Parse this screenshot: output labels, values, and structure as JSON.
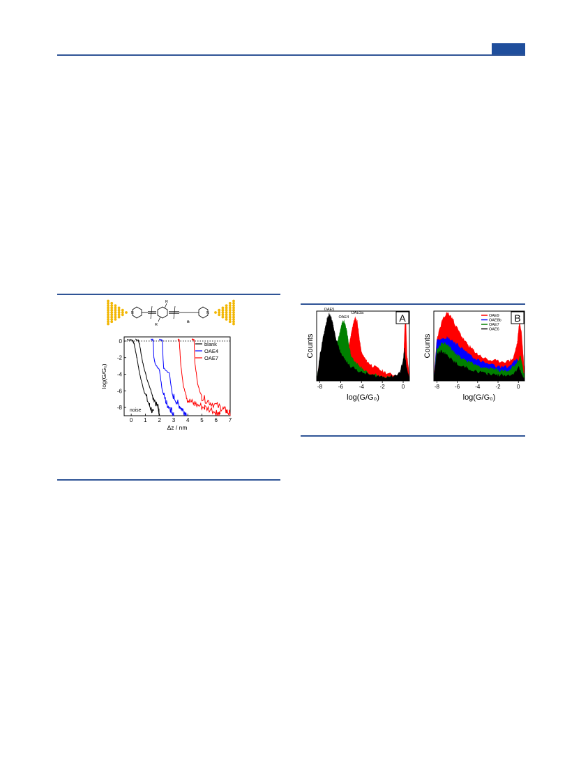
{
  "colors": {
    "rule": "#2f5496",
    "header_tab": "#1f4e9c",
    "gold": "#f2b705",
    "black": "#000000",
    "blue": "#0000ff",
    "red": "#ff0000",
    "green": "#008000"
  },
  "scheme": {
    "n_label": "n",
    "r_label_top": "R",
    "r_label_bottom": "R",
    "n_atom_left": "N",
    "n_atom_right": "N"
  },
  "chart_data": [
    {
      "type": "line",
      "ylabel": "log(G/G₀)",
      "xlabel": "Δz / nm",
      "xlim": [
        -0.5,
        7
      ],
      "ylim": [
        -9,
        0.5
      ],
      "xticks": [
        "0",
        "1",
        "2",
        "3",
        "4",
        "5",
        "6",
        "7"
      ],
      "yticks": [
        "0",
        "-2",
        "-4",
        "-6",
        "-8"
      ],
      "legend": [
        "blank",
        "OAE4",
        "OAE7"
      ],
      "legend_placement": "top-right",
      "annotation": "noise",
      "reference_line": {
        "y": 0,
        "style": "dotted"
      },
      "series": [
        {
          "name": "blank",
          "color": "#000000",
          "traces": [
            {
              "x": [
                -0.3,
                0.1,
                0.2,
                0.4,
                0.6,
                0.9,
                1.3,
                1.6
              ],
              "y": [
                0.2,
                0.1,
                -0.3,
                -2.0,
                -4.0,
                -6.0,
                -7.8,
                -8.8
              ]
            },
            {
              "x": [
                0.3,
                0.5,
                0.6,
                0.8,
                1.1,
                1.5,
                1.9,
                2.0
              ],
              "y": [
                0.2,
                0.1,
                -0.5,
                -2.5,
                -4.5,
                -6.5,
                -8.0,
                -8.8
              ]
            }
          ]
        },
        {
          "name": "OAE4",
          "color": "#0000ff",
          "traces": [
            {
              "x": [
                1.4,
                1.55,
                1.6,
                1.7,
                2.0,
                2.2,
                2.5,
                2.8,
                3.0
              ],
              "y": [
                0.2,
                0.1,
                -2.0,
                -2.8,
                -3.5,
                -6.0,
                -7.5,
                -8.2,
                -8.8
              ]
            },
            {
              "x": [
                2.0,
                2.2,
                2.25,
                2.3,
                2.7,
                2.9,
                3.3,
                3.6,
                3.9
              ],
              "y": [
                0.2,
                0.1,
                -2.0,
                -3.3,
                -3.9,
                -6.4,
                -7.5,
                -8.2,
                -8.8
              ]
            }
          ]
        },
        {
          "name": "OAE7",
          "color": "#ff0000",
          "traces": [
            {
              "x": [
                3.3,
                3.4,
                3.5,
                3.7,
                4.0,
                4.5,
                5.2,
                6.0,
                6.3
              ],
              "y": [
                0.2,
                0.1,
                -2.8,
                -5.5,
                -7.1,
                -7.6,
                -8.0,
                -8.5,
                -8.8
              ]
            },
            {
              "x": [
                4.3,
                4.45,
                4.5,
                4.7,
                5.0,
                5.6,
                6.3,
                6.7,
                7.0
              ],
              "y": [
                0.2,
                0.1,
                -2.5,
                -5.2,
                -6.8,
                -7.4,
                -8.0,
                -8.4,
                -8.8
              ]
            }
          ]
        }
      ]
    },
    {
      "type": "area",
      "panel": "A",
      "xlabel": "log(G/G₀)",
      "ylabel": "Counts",
      "xlim": [
        -8.3,
        0.6
      ],
      "xticks": [
        "-8",
        "-6",
        "-4",
        "-2",
        "0"
      ],
      "annotations": [
        "OAE5",
        "OAE4",
        "OAE3a"
      ],
      "series": [
        {
          "name": "OAE3a",
          "color": "#ff0000",
          "x": [
            -8.3,
            -8.0,
            -7.0,
            -6.0,
            -5.2,
            -5.0,
            -4.8,
            -4.6,
            -4.4,
            -4.2,
            -4.0,
            -3.5,
            -3.0,
            -2.0,
            -1.0,
            0.0,
            0.15,
            0.25,
            0.35,
            0.6
          ],
          "y": [
            0,
            0.3,
            0.5,
            0.45,
            0.5,
            0.65,
            0.82,
            0.9,
            0.85,
            0.6,
            0.4,
            0.28,
            0.22,
            0.14,
            0.08,
            0.1,
            0.75,
            0.95,
            0.4,
            0.05
          ]
        },
        {
          "name": "OAE4",
          "color": "#008000",
          "x": [
            -8.3,
            -8.0,
            -7.0,
            -6.5,
            -6.2,
            -6.0,
            -5.8,
            -5.6,
            -5.4,
            -5.2,
            -5.0,
            -4.5,
            -4.0,
            -3.0,
            -2.0,
            -1.0,
            0.0,
            0.6
          ],
          "y": [
            0,
            0.3,
            0.5,
            0.5,
            0.62,
            0.75,
            0.85,
            0.85,
            0.7,
            0.5,
            0.35,
            0.25,
            0.18,
            0.1,
            0.06,
            0.05,
            0.1,
            0.02
          ]
        },
        {
          "name": "OAE5",
          "color": "#000000",
          "x": [
            -8.3,
            -8.0,
            -7.7,
            -7.5,
            -7.3,
            -7.1,
            -6.9,
            -6.7,
            -6.5,
            -6.2,
            -6.0,
            -5.5,
            -5.0,
            -4.0,
            -3.0,
            -2.0,
            -1.0,
            -0.3,
            0.0,
            0.1,
            0.3,
            0.6
          ],
          "y": [
            0,
            0.35,
            0.6,
            0.75,
            0.88,
            0.96,
            0.9,
            0.78,
            0.62,
            0.48,
            0.4,
            0.28,
            0.2,
            0.12,
            0.08,
            0.06,
            0.06,
            0.12,
            0.3,
            0.45,
            0.2,
            0.02
          ]
        }
      ]
    },
    {
      "type": "area",
      "panel": "B",
      "xlabel": "log(G/G₀)",
      "ylabel": "Counts",
      "xlim": [
        -8.3,
        0.6
      ],
      "xticks": [
        "-8",
        "-6",
        "-4",
        "-2",
        "0"
      ],
      "legend": [
        "OAE9",
        "OAE8b",
        "OAE7",
        "OAE6"
      ],
      "legend_placement": "top-right",
      "series": [
        {
          "name": "OAE9",
          "color": "#ff0000",
          "x": [
            -8.3,
            -8.0,
            -7.5,
            -7.0,
            -6.5,
            -6.0,
            -5.5,
            -5.0,
            -4.5,
            -4.0,
            -3.0,
            -2.0,
            -1.0,
            -0.5,
            -0.1,
            0.1,
            0.3,
            0.6
          ],
          "y": [
            0,
            0.6,
            0.85,
            0.98,
            0.9,
            0.75,
            0.62,
            0.52,
            0.45,
            0.38,
            0.3,
            0.28,
            0.28,
            0.32,
            0.55,
            0.85,
            0.7,
            0.1
          ]
        },
        {
          "name": "OAE8b",
          "color": "#0000ff",
          "x": [
            -8.3,
            -8.0,
            -7.5,
            -7.0,
            -6.5,
            -6.0,
            -5.5,
            -5.0,
            -4.0,
            -3.0,
            -2.0,
            -1.0,
            -0.2,
            0.2,
            0.6
          ],
          "y": [
            0,
            0.58,
            0.62,
            0.62,
            0.58,
            0.52,
            0.46,
            0.4,
            0.3,
            0.24,
            0.2,
            0.2,
            0.3,
            0.25,
            0.05
          ]
        },
        {
          "name": "OAE7",
          "color": "#008000",
          "x": [
            -8.3,
            -8.0,
            -7.6,
            -7.2,
            -6.8,
            -6.4,
            -6.0,
            -5.0,
            -4.0,
            -3.0,
            -2.0,
            -1.0,
            -0.2,
            0.2,
            0.6
          ],
          "y": [
            0,
            0.45,
            0.52,
            0.55,
            0.5,
            0.42,
            0.36,
            0.28,
            0.22,
            0.18,
            0.15,
            0.14,
            0.25,
            0.35,
            0.05
          ]
        },
        {
          "name": "OAE6",
          "color": "#000000",
          "x": [
            -8.3,
            -8.0,
            -7.6,
            -7.2,
            -6.8,
            -6.4,
            -6.0,
            -5.0,
            -4.0,
            -3.0,
            -2.0,
            -1.0,
            -0.3,
            0.0,
            0.3,
            0.6
          ],
          "y": [
            0,
            0.4,
            0.42,
            0.4,
            0.34,
            0.28,
            0.24,
            0.18,
            0.13,
            0.1,
            0.08,
            0.08,
            0.12,
            0.2,
            0.1,
            0.02
          ]
        }
      ]
    }
  ]
}
